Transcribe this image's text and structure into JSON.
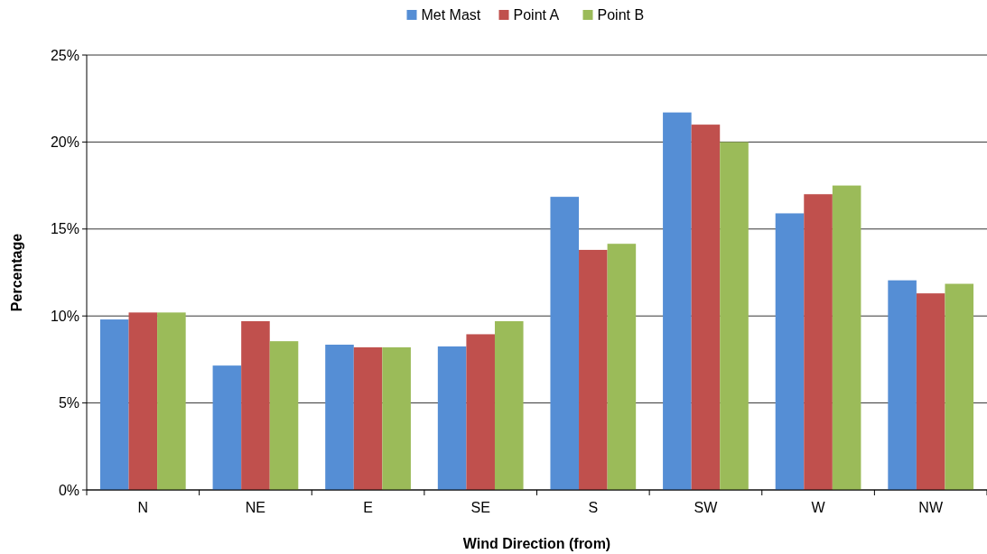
{
  "chart_data": {
    "type": "bar",
    "xlabel": "Wind Direction (from)",
    "ylabel": "Percentage",
    "categories": [
      "N",
      "NE",
      "E",
      "SE",
      "S",
      "SW",
      "W",
      "NW"
    ],
    "series": [
      {
        "name": "Met Mast",
        "color": "#558ed5",
        "values": [
          9.8,
          7.15,
          8.35,
          8.25,
          16.85,
          21.7,
          15.9,
          12.05
        ]
      },
      {
        "name": "Point A",
        "color": "#c0504d",
        "values": [
          10.2,
          9.7,
          8.2,
          8.95,
          13.8,
          21.0,
          17.0,
          11.3
        ]
      },
      {
        "name": "Point B",
        "color": "#9bbb59",
        "values": [
          10.2,
          8.55,
          8.2,
          9.7,
          14.15,
          20.0,
          17.5,
          11.85
        ]
      }
    ],
    "ylim": [
      0,
      25
    ],
    "yticks": [
      {
        "value": 0,
        "label": "0%"
      },
      {
        "value": 5,
        "label": "5%"
      },
      {
        "value": 10,
        "label": "10%"
      },
      {
        "value": 15,
        "label": "15%"
      },
      {
        "value": 20,
        "label": "20%"
      },
      {
        "value": 25,
        "label": "25%"
      }
    ],
    "grid": "y",
    "legend": "top"
  }
}
